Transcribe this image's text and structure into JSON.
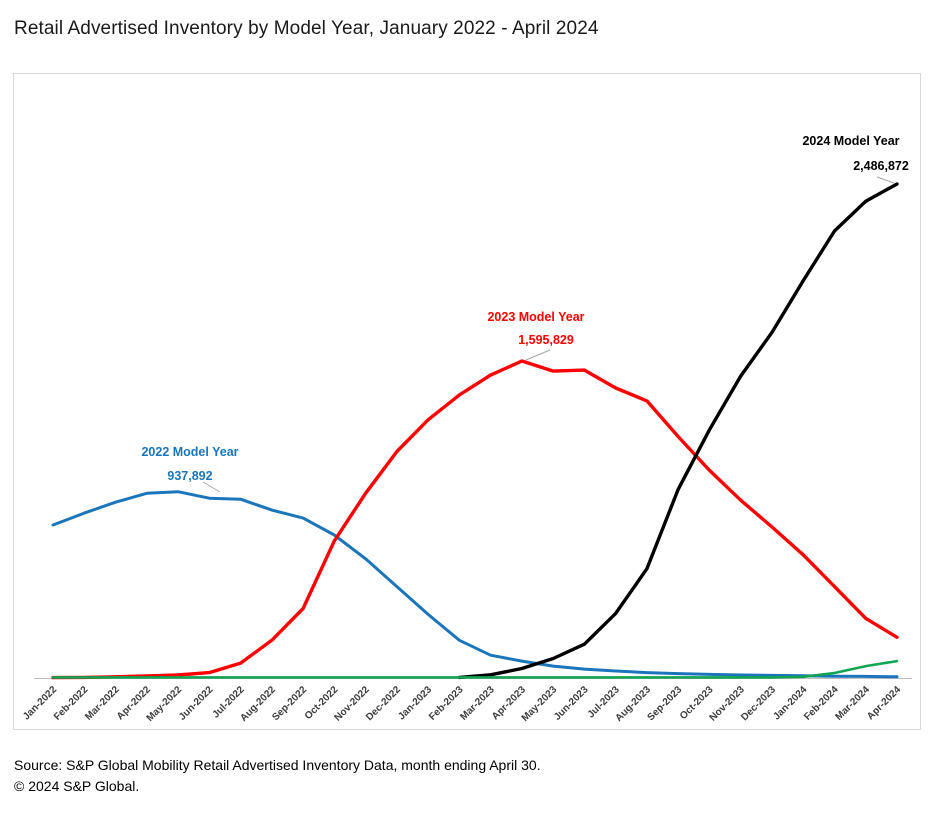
{
  "page": {
    "title": "Retail Advertised Inventory by Model Year, January 2022 - April 2024",
    "source_line1": "Source: S&P Global Mobility Retail Advertised Inventory Data, month ending April 30.",
    "source_line2": "© 2024 S&P Global."
  },
  "colors": {
    "blue_2022": "#1b75bb",
    "red_2023": "#ff0000",
    "black_2024": "#000000",
    "green_unlabeled": "#12a452",
    "axis_line": "#bfbfbf",
    "border": "#d9d9d9",
    "leader_line": "#a6a6a6",
    "axis_text": "#3d3d3d"
  },
  "chart_data": {
    "type": "line",
    "title": "Retail Advertised Inventory by Model Year, January 2022 - April 2024",
    "xlabel": "",
    "ylabel": "",
    "ylim": [
      0,
      2600000
    ],
    "grid": false,
    "legend": "none (series directly labeled on chart)",
    "x": [
      "Jan-2022",
      "Feb-2022",
      "Mar-2022",
      "Apr-2022",
      "May-2022",
      "Jun-2022",
      "Jul-2022",
      "Aug-2022",
      "Sep-2022",
      "Oct-2022",
      "Nov-2022",
      "Dec-2022",
      "Jan-2023",
      "Feb-2023",
      "Mar-2023",
      "Apr-2023",
      "May-2023",
      "Jun-2023",
      "Jul-2023",
      "Aug-2023",
      "Sep-2023",
      "Oct-2023",
      "Nov-2023",
      "Dec-2023",
      "Jan-2024",
      "Feb-2024",
      "Mar-2024",
      "Apr-2024"
    ],
    "series": [
      {
        "name": "2022 Model Year",
        "color": "#1b75bb",
        "peak_label": "937,892",
        "values": [
          770000,
          830000,
          885000,
          930000,
          937892,
          905000,
          900000,
          845000,
          805000,
          720000,
          600000,
          460000,
          320000,
          190000,
          115000,
          85000,
          60000,
          45000,
          35000,
          27000,
          22000,
          18000,
          15000,
          13000,
          11000,
          9000,
          8000,
          6000
        ]
      },
      {
        "name": "2023 Model Year",
        "color": "#ff0000",
        "peak_label": "1,595,829",
        "values": [
          2000,
          3000,
          6000,
          10000,
          15000,
          27000,
          75000,
          190000,
          350000,
          690000,
          930000,
          1140000,
          1300000,
          1425000,
          1525000,
          1595829,
          1545000,
          1550000,
          1460000,
          1395000,
          1215000,
          1045000,
          895000,
          760000,
          620000,
          460000,
          300000,
          205000
        ]
      },
      {
        "name": "2024 Model Year",
        "color": "#000000",
        "peak_label": "2,486,872",
        "values": [
          null,
          null,
          null,
          null,
          null,
          null,
          null,
          null,
          null,
          null,
          null,
          null,
          null,
          3000,
          16000,
          48000,
          98000,
          170000,
          325000,
          550000,
          950000,
          1250000,
          1520000,
          1740000,
          2000000,
          2250000,
          2400000,
          2486872
        ]
      },
      {
        "name": "",
        "color": "#12a452",
        "peak_label": "",
        "values": [
          3000,
          3000,
          3000,
          3000,
          3000,
          3000,
          3000,
          3000,
          3000,
          3000,
          3000,
          3000,
          3000,
          3000,
          3000,
          3000,
          3000,
          3000,
          3000,
          3000,
          3000,
          3000,
          3000,
          3000,
          6000,
          25000,
          60000,
          85000
        ]
      }
    ],
    "annotations": [
      {
        "series": "2022 Model Year",
        "value_label": "937,892",
        "color": "#1b75bb"
      },
      {
        "series": "2023 Model Year",
        "value_label": "1,595,829",
        "color": "#ff0000"
      },
      {
        "series": "2024 Model Year",
        "value_label": "2,486,872",
        "color": "#000000"
      }
    ]
  }
}
